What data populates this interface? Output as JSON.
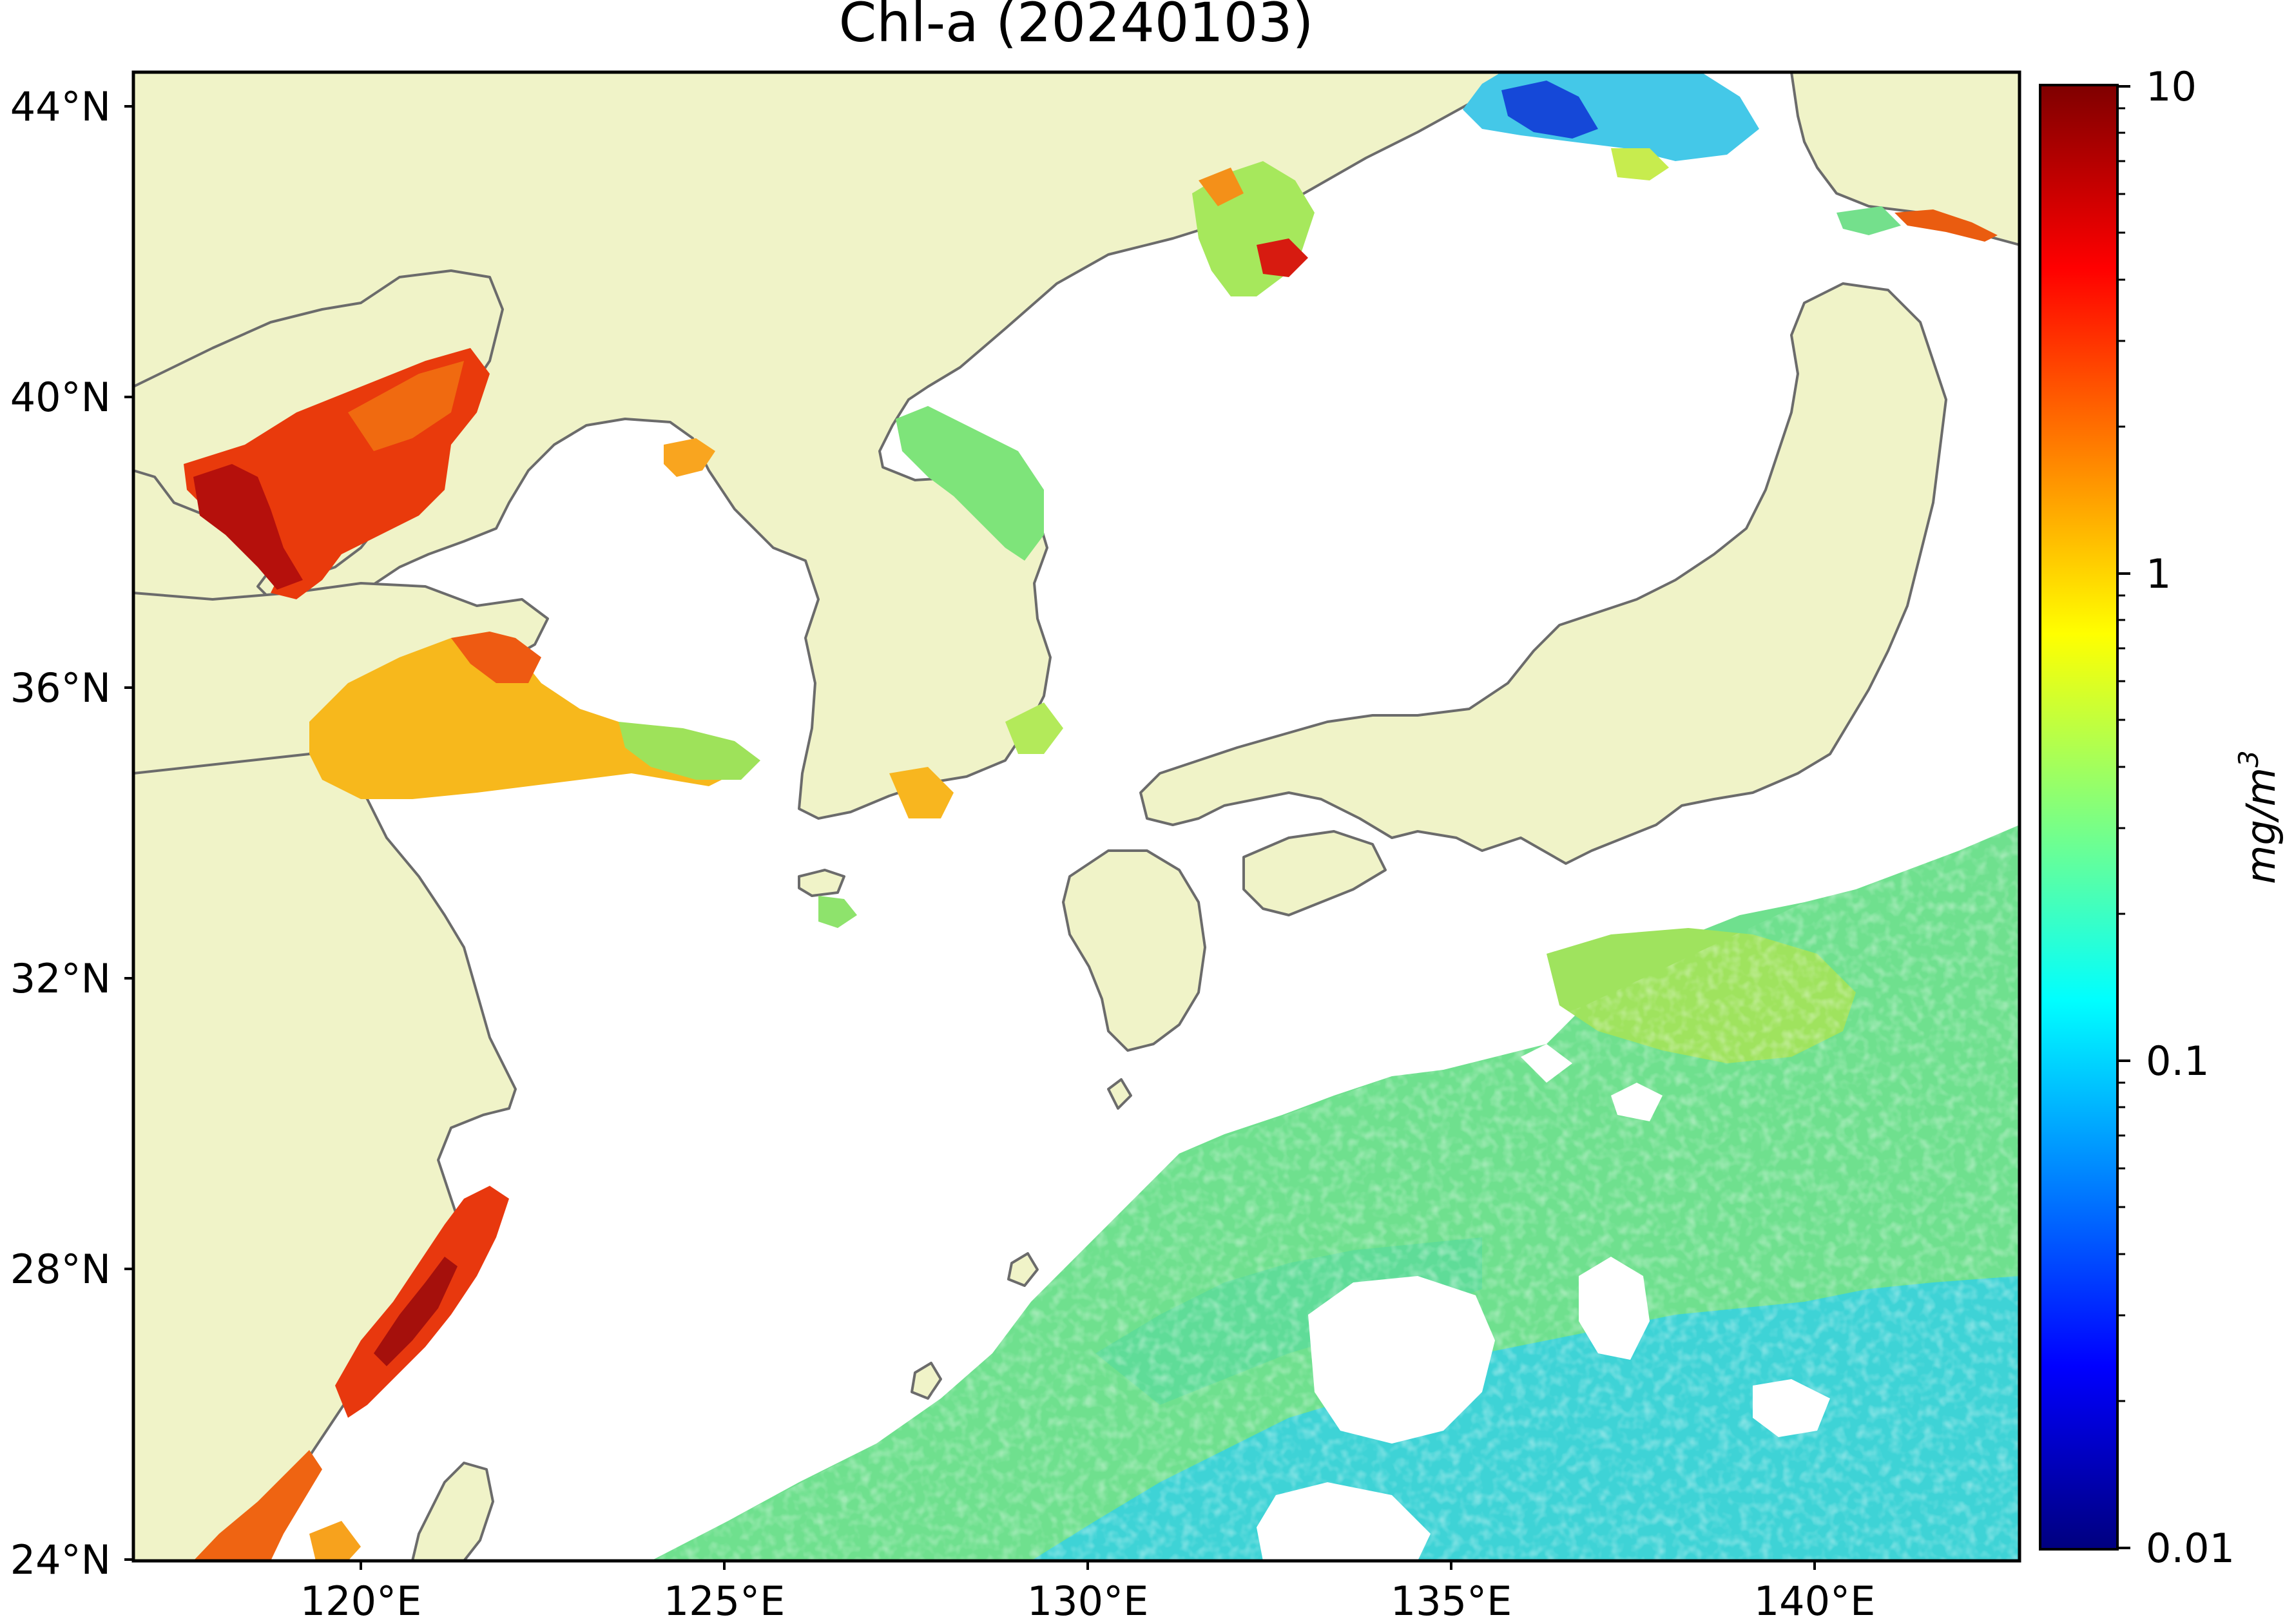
{
  "map": {
    "title": "Chl-a (20240103)",
    "lat_labels": [
      "44°N",
      "40°N",
      "36°N",
      "32°N",
      "28°N",
      "24°N"
    ],
    "lon_labels": [
      "120°E",
      "125°E",
      "130°E",
      "135°E",
      "140°E"
    ],
    "colorbar": {
      "label": "mg/m",
      "label_superscript": "3",
      "tick_labels": [
        "10",
        "1",
        "0.1",
        "0.01"
      ],
      "scale": "log",
      "range": [
        0.01,
        10
      ],
      "colormap": "jet"
    },
    "colors": {
      "land": "#f0f3c8",
      "coastline": "#6b6b6b",
      "no_data": "#ffffff",
      "frame": "#000000"
    }
  }
}
